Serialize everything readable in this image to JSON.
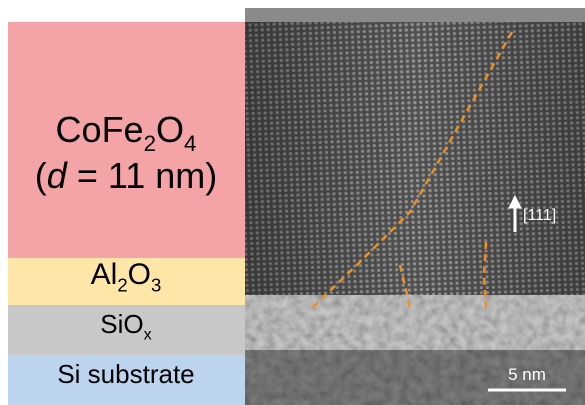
{
  "layers": [
    {
      "color": "#f4a3a6",
      "lines": [
        [
          {
            "text": "CoFe"
          },
          {
            "sub": "2"
          },
          {
            "text": "O"
          },
          {
            "sub": "4"
          }
        ],
        [
          {
            "text": "("
          },
          {
            "italic": "d"
          },
          {
            "text": " = 11 nm)"
          }
        ]
      ]
    },
    {
      "color": "#fde6a8",
      "lines": [
        [
          {
            "text": "Al"
          },
          {
            "sub": "2"
          },
          {
            "text": "O"
          },
          {
            "sub": "3"
          }
        ]
      ]
    },
    {
      "color": "#c8c8c8",
      "lines": [
        [
          {
            "text": "SiO"
          },
          {
            "sub": "x"
          }
        ]
      ]
    },
    {
      "color": "#bcd4ee",
      "lines": [
        [
          {
            "text": "Si substrate"
          }
        ]
      ]
    }
  ],
  "image": {
    "direction_label": "[111]",
    "scale_bar": "5 nm"
  }
}
